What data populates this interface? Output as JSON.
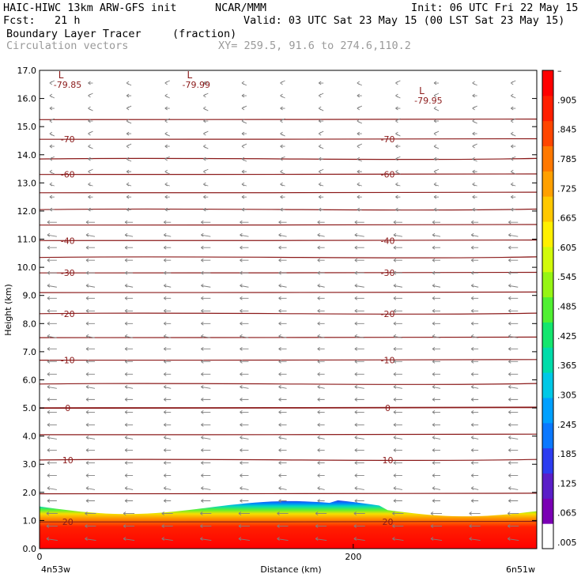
{
  "header": {
    "model": "HAIC-HIWC 13km ARW-GFS init",
    "org": "NCAR/MMM",
    "init": "Init: 06 UTC Fri 22 May 15",
    "fcst": "Fcst:   21 h",
    "valid": "Valid: 03 UTC Sat 23 May 15 (00 LST Sat 23 May 15)",
    "field": "Boundary Layer Tracer",
    "units": "(fraction)",
    "vectors": "Circulation vectors",
    "xy": "XY= 259.5, 91.6 to 274.6,110.2"
  },
  "colors": {
    "contour": "#8b1a1a",
    "vector": "#808080",
    "colorbar": [
      "#ffffff",
      "#7a00b4",
      "#5a1ec8",
      "#2d3cf0",
      "#0a78ff",
      "#00a0ff",
      "#00c8e6",
      "#00dcaa",
      "#14e66e",
      "#50f032",
      "#96f514",
      "#d2fa0a",
      "#fff000",
      "#ffc800",
      "#ffa000",
      "#ff7800",
      "#ff4600",
      "#ff1e00",
      "#ff0000"
    ]
  },
  "chart_data": {
    "type": "cross-section",
    "ylabel": "Height (km)",
    "xlabel": "Distance (km)",
    "x_left_label": "4n53w",
    "x_right_label": "6n51w",
    "x_range": [
      0,
      317
    ],
    "y_range": [
      0.0,
      17.0
    ],
    "x_ticks": [
      {
        "value": 0,
        "label": "0"
      },
      {
        "value": 200,
        "label": "200"
      }
    ],
    "y_ticks": [
      "0.0",
      "1.0",
      "2.0",
      "3.0",
      "4.0",
      "5.0",
      "6.0",
      "7.0",
      "8.0",
      "9.0",
      "10.0",
      "11.0",
      "12.0",
      "13.0",
      "14.0",
      "15.0",
      "16.0",
      "17.0"
    ],
    "colorbar_labels": [
      ".005",
      ".065",
      ".125",
      ".185",
      ".245",
      ".305",
      ".365",
      ".425",
      ".485",
      ".545",
      ".605",
      ".665",
      ".725",
      ".785",
      ".845",
      ".905",
      "–"
    ],
    "temperature_contours": [
      {
        "height": 0.95,
        "label": "20"
      },
      {
        "height": 1.95,
        "label": ""
      },
      {
        "height": 3.15,
        "label": "10"
      },
      {
        "height": 4.05,
        "label": ""
      },
      {
        "height": 5.0,
        "label": "0"
      },
      {
        "height": 5.85,
        "label": ""
      },
      {
        "height": 6.7,
        "label": "-10"
      },
      {
        "height": 7.5,
        "label": ""
      },
      {
        "height": 8.35,
        "label": "-20"
      },
      {
        "height": 9.1,
        "label": ""
      },
      {
        "height": 9.8,
        "label": "-30"
      },
      {
        "height": 10.35,
        "label": ""
      },
      {
        "height": 10.95,
        "label": "-40"
      },
      {
        "height": 11.5,
        "label": ""
      },
      {
        "height": 12.05,
        "label": ""
      },
      {
        "height": 12.65,
        "label": ""
      },
      {
        "height": 13.3,
        "label": "-60"
      },
      {
        "height": 13.85,
        "label": ""
      },
      {
        "height": 14.55,
        "label": "-70"
      },
      {
        "height": 15.25,
        "label": ""
      }
    ],
    "minima": [
      {
        "x": 12,
        "height": 16.6,
        "label": "L",
        "value": "-79.85"
      },
      {
        "x": 94,
        "height": 16.6,
        "label": "L",
        "value": "-79.99"
      },
      {
        "x": 242,
        "height": 16.05,
        "label": "L",
        "value": "-79.95"
      }
    ],
    "bl_tracer": {
      "top_height_km": 1.5,
      "core_height_km": 0.9,
      "max_value": 1.0
    }
  }
}
